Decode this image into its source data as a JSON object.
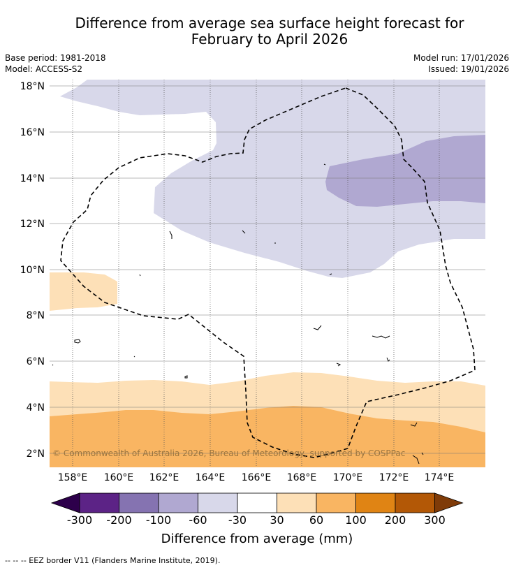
{
  "title": {
    "line1": "Difference from average sea surface height forecast for",
    "line2": "February to April 2026"
  },
  "meta": {
    "base_period": "Base period: 1981-2018",
    "model": "Model: ACCESS-S2",
    "model_run": "Model run: 17/01/2026",
    "issued": "Issued: 19/01/2026"
  },
  "map": {
    "lat_labels": [
      "18°N",
      "16°N",
      "14°N",
      "12°N",
      "10°N",
      "8°N",
      "6°N",
      "4°N",
      "2°N"
    ],
    "lon_labels": [
      "158°E",
      "160°E",
      "162°E",
      "164°E",
      "166°E",
      "168°E",
      "170°E",
      "172°E",
      "174°E"
    ],
    "copyright": "© Commonwealth of Australia 2026, Bureau of Meteorology, supported by COSPPac"
  },
  "colorbar": {
    "tick_labels": [
      "-300",
      "-200",
      "-100",
      "-60",
      "-30",
      "30",
      "60",
      "100",
      "200",
      "300"
    ],
    "colors": [
      "#5c2386",
      "#8573b1",
      "#b0a8d1",
      "#d8d8ea",
      "#ffffff",
      "#fde0b7",
      "#f9b562",
      "#e08414",
      "#b35806"
    ],
    "under_color": "#2d004b",
    "over_color": "#7f3b08",
    "label": "Difference from average (mm)"
  },
  "footnote": "--  --  -- EEZ border V11 (Flanders Marine Institute, 2019)."
}
